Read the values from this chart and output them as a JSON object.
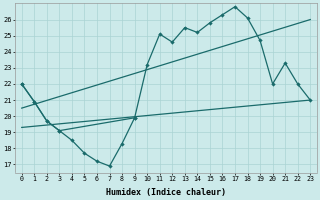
{
  "xlabel": "Humidex (Indice chaleur)",
  "x_ticks": [
    0,
    1,
    2,
    3,
    4,
    5,
    6,
    7,
    8,
    9,
    10,
    11,
    12,
    13,
    14,
    15,
    16,
    17,
    18,
    19,
    20,
    21,
    22,
    23
  ],
  "y_ticks": [
    17,
    18,
    19,
    20,
    21,
    22,
    23,
    24,
    25,
    26
  ],
  "ylim": [
    16.5,
    27.0
  ],
  "xlim": [
    -0.5,
    23.5
  ],
  "bg_color": "#cceaea",
  "line_color": "#1a6b6b",
  "grid_color": "#aad4d4",
  "curve_low_x": [
    0,
    1,
    2,
    3,
    4,
    5,
    6,
    7,
    8,
    9
  ],
  "curve_low_y": [
    22,
    20.9,
    19.7,
    19.1,
    18.5,
    17.7,
    17.2,
    16.9,
    18.3,
    19.9
  ],
  "curve_high_x": [
    0,
    1,
    2,
    3,
    9,
    10,
    11,
    12,
    13,
    14,
    15,
    16,
    17,
    18,
    19,
    20,
    21,
    22,
    23
  ],
  "curve_high_y": [
    22,
    20.9,
    19.7,
    19.1,
    19.9,
    23.2,
    25.1,
    24.6,
    25.5,
    25.2,
    25.8,
    26.3,
    26.8,
    26.1,
    24.7,
    22.0,
    23.3,
    22.0,
    21.0
  ],
  "trend1_x": [
    0,
    23
  ],
  "trend1_y": [
    20.5,
    26.0
  ],
  "trend2_x": [
    0,
    23
  ],
  "trend2_y": [
    19.3,
    21.0
  ]
}
